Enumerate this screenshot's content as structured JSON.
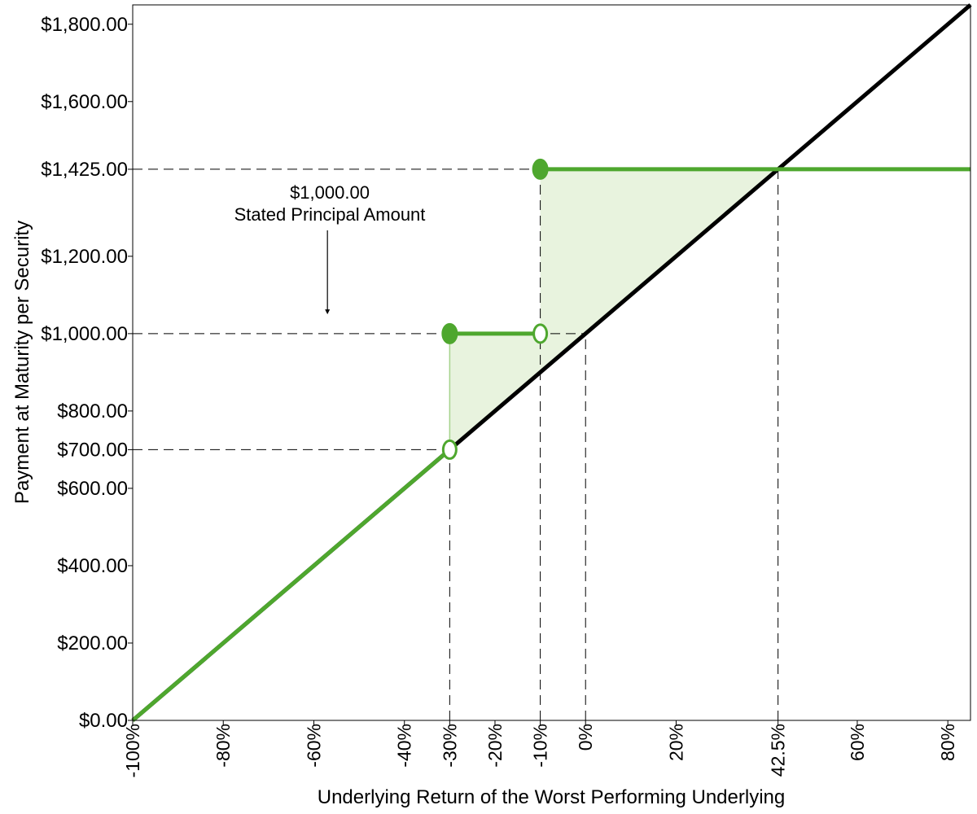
{
  "chart_data": {
    "type": "line",
    "xlabel": "Underlying Return of the Worst Performing Underlying",
    "ylabel": "Payment at Maturity per Security",
    "xlim": [
      -100,
      85
    ],
    "ylim": [
      0,
      1850
    ],
    "x_ticks": [
      {
        "value": -100,
        "label": "-100%"
      },
      {
        "value": -80,
        "label": "-80%"
      },
      {
        "value": -60,
        "label": "-60%"
      },
      {
        "value": -40,
        "label": "-40%"
      },
      {
        "value": -30,
        "label": "-30%"
      },
      {
        "value": -20,
        "label": "-20%"
      },
      {
        "value": -10,
        "label": "-10%"
      },
      {
        "value": 0,
        "label": "0%"
      },
      {
        "value": 20,
        "label": "20%"
      },
      {
        "value": 42.5,
        "label": "42.5%"
      },
      {
        "value": 60,
        "label": "60%"
      },
      {
        "value": 80,
        "label": "80%"
      }
    ],
    "y_ticks": [
      {
        "value": 0,
        "label": "$0.00"
      },
      {
        "value": 200,
        "label": "$200.00"
      },
      {
        "value": 400,
        "label": "$400.00"
      },
      {
        "value": 600,
        "label": "$600.00"
      },
      {
        "value": 700,
        "label": "$700.00"
      },
      {
        "value": 800,
        "label": "$800.00"
      },
      {
        "value": 1000,
        "label": "$1,000.00"
      },
      {
        "value": 1200,
        "label": "$1,200.00"
      },
      {
        "value": 1425,
        "label": "$1,425.00"
      },
      {
        "value": 1600,
        "label": "$1,600.00"
      },
      {
        "value": 1800,
        "label": "$1,800.00"
      }
    ],
    "series": [
      {
        "role": "underlying",
        "color": "#000000",
        "points": [
          [
            -100,
            0
          ],
          [
            85,
            1850
          ]
        ]
      },
      {
        "role": "security",
        "color": "#4ea72e",
        "segments": [
          [
            [
              -100,
              0
            ],
            [
              -30,
              700
            ]
          ],
          [
            [
              -30,
              1000
            ],
            [
              -10,
              1000
            ]
          ],
          [
            [
              -10,
              1425
            ],
            [
              85,
              1425
            ]
          ]
        ],
        "filled_markers": [
          [
            -30,
            1000
          ],
          [
            -10,
            1425
          ]
        ],
        "open_markers": [
          [
            -30,
            700
          ],
          [
            -10,
            1000
          ]
        ]
      }
    ],
    "shaded_regions": [
      {
        "color": "#e8f3de",
        "points": [
          [
            -30,
            700
          ],
          [
            -30,
            1000
          ],
          [
            -10,
            1000
          ],
          [
            -10,
            900
          ]
        ]
      },
      {
        "color": "#e8f3de",
        "points": [
          [
            -10,
            900
          ],
          [
            -10,
            1425
          ],
          [
            42.5,
            1425
          ]
        ]
      }
    ],
    "reference_lines": [
      {
        "from": [
          -100,
          700
        ],
        "to": [
          -30,
          700
        ]
      },
      {
        "from": [
          -100,
          1000
        ],
        "to": [
          0,
          1000
        ]
      },
      {
        "from": [
          -100,
          1425
        ],
        "to": [
          42.5,
          1425
        ]
      },
      {
        "from": [
          -30,
          0
        ],
        "to": [
          -30,
          700
        ]
      },
      {
        "from": [
          -10,
          0
        ],
        "to": [
          -10,
          1425
        ]
      },
      {
        "from": [
          0,
          0
        ],
        "to": [
          0,
          1000
        ]
      },
      {
        "from": [
          42.5,
          0
        ],
        "to": [
          42.5,
          1425
        ]
      }
    ],
    "annotation": {
      "lines": [
        "$1,000.00",
        "Stated Principal Amount"
      ],
      "arrow_at": [
        -57,
        1050
      ]
    }
  }
}
